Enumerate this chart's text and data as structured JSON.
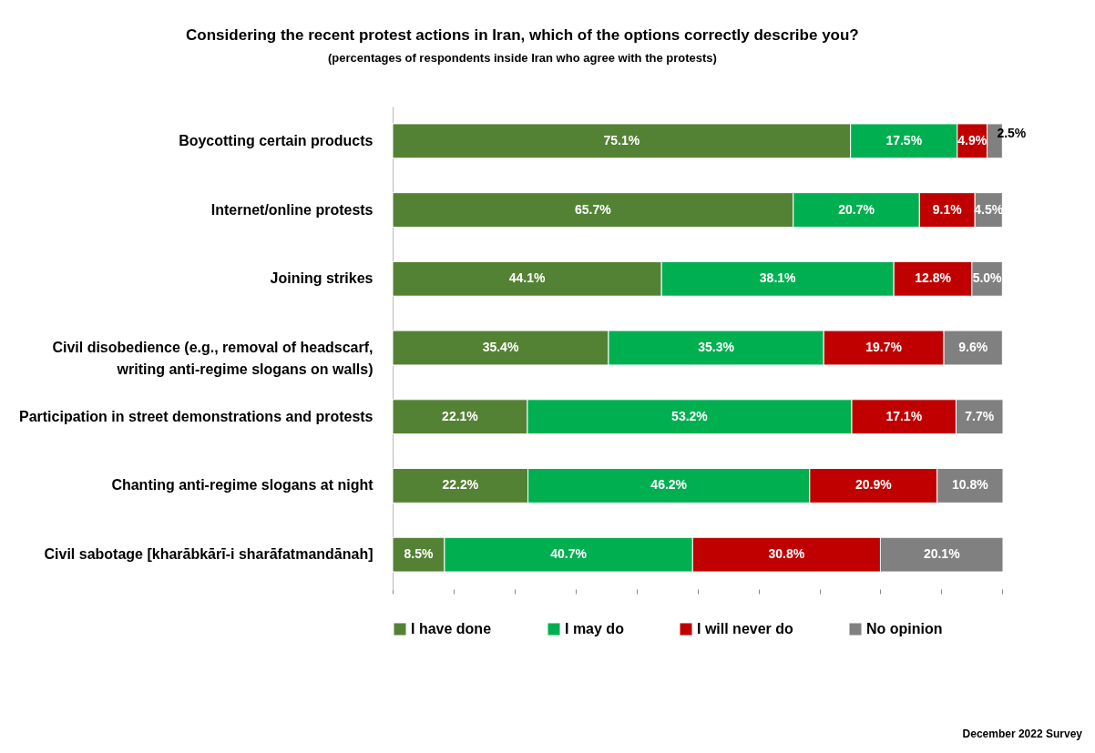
{
  "chart_data": {
    "type": "bar",
    "orientation": "horizontal",
    "stacked": true,
    "legend": "bottom",
    "title": "Considering the recent protest actions in Iran, which of the options correctly describe you?",
    "subtitle": "(percentages of respondents inside Iran who agree with the protests)",
    "categories": [
      "Boycotting certain products",
      "Internet/online protests",
      "Joining strikes",
      "Civil disobedience (e.g., removal of headscarf, writing anti-regime slogans on walls)",
      "Participation in street demonstrations and protests",
      "Chanting anti-regime slogans at night",
      "Civil sabotage [kharābkārī-i sharāfatmandānah]"
    ],
    "series": [
      {
        "name": "I have done",
        "color": "#548235",
        "values": [
          75.1,
          65.7,
          44.1,
          35.4,
          22.1,
          22.2,
          8.5
        ],
        "value_labels": [
          "75.1%",
          "65.7%",
          "44.1%",
          "35.4%",
          "22.1%",
          "22.2%",
          "8.5%"
        ]
      },
      {
        "name": "I may do",
        "color": "#00b050",
        "values": [
          17.5,
          20.7,
          38.1,
          35.3,
          53.2,
          46.2,
          40.7
        ],
        "value_labels": [
          "17.5%",
          "20.7%",
          "38.1%",
          "35.3%",
          "53.2%",
          "46.2%",
          "40.7%"
        ]
      },
      {
        "name": "I will never do",
        "color": "#c00000",
        "values": [
          4.9,
          9.1,
          12.8,
          19.7,
          17.1,
          20.9,
          30.8
        ],
        "value_labels": [
          "4.9%",
          "9.1%",
          "12.8%",
          "19.7%",
          "17.1%",
          "20.9%",
          "30.8%"
        ]
      },
      {
        "name": "No opinion",
        "color": "#808080",
        "values": [
          2.5,
          4.5,
          5.0,
          9.6,
          7.7,
          10.8,
          20.1
        ],
        "value_labels": [
          "2.5%",
          "4.5%",
          "5.0%",
          "9.6%",
          "7.7%",
          "10.8%",
          "20.1%"
        ]
      }
    ],
    "annotations": [
      "December 2022 Survey"
    ]
  }
}
